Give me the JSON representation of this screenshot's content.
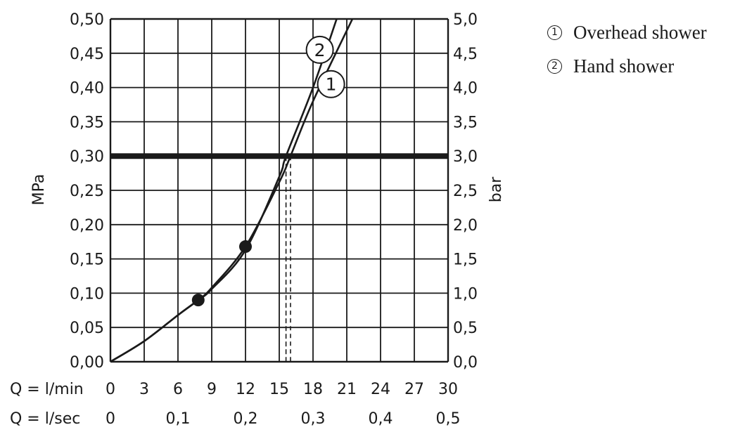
{
  "chart_data": {
    "type": "line",
    "xlabel": "Q = l/min",
    "x2label": "Q = l/sec",
    "ylabel": "MPa",
    "y2label": "bar",
    "xlim": [
      0,
      30
    ],
    "ylim": [
      0,
      0.5
    ],
    "grid": true,
    "x_ticks": [
      "0",
      "3",
      "6",
      "9",
      "12",
      "15",
      "18",
      "21",
      "24",
      "27",
      "30"
    ],
    "x2_ticks": [
      {
        "value": 0,
        "label": "0"
      },
      {
        "value": 0.1,
        "label": "0,1"
      },
      {
        "value": 0.2,
        "label": "0,2"
      },
      {
        "value": 0.3,
        "label": "0,3"
      },
      {
        "value": 0.4,
        "label": "0,4"
      },
      {
        "value": 0.5,
        "label": "0,5"
      }
    ],
    "y_ticks": [
      "0,00",
      "0,05",
      "0,10",
      "0,15",
      "0,20",
      "0,25",
      "0,30",
      "0,35",
      "0,40",
      "0,45",
      "0,50"
    ],
    "y2_ticks": [
      "0,0",
      "0,5",
      "1,0",
      "1,5",
      "2,0",
      "2,5",
      "3,0",
      "3,5",
      "4,0",
      "4,5",
      "5,0"
    ],
    "series": [
      {
        "name": "1",
        "x": [
          0,
          3,
          6,
          7.8,
          9,
          12,
          15,
          16,
          18,
          21.5
        ],
        "y": [
          0,
          0.03,
          0.068,
          0.09,
          0.108,
          0.168,
          0.262,
          0.3,
          0.38,
          0.5
        ]
      },
      {
        "name": "2",
        "x": [
          0,
          3,
          6,
          7.8,
          9,
          12,
          15,
          15.6,
          18,
          20.1
        ],
        "y": [
          0,
          0.03,
          0.068,
          0.09,
          0.106,
          0.163,
          0.27,
          0.3,
          0.4,
          0.5
        ]
      }
    ],
    "reference_line": {
      "y": 0.3
    },
    "drop_lines_x": [
      15.6,
      16
    ],
    "markers": [
      {
        "x": 7.8,
        "y": 0.09
      },
      {
        "x": 12,
        "y": 0.168
      }
    ],
    "series_labels": [
      {
        "text": "2",
        "x": 18.6,
        "y": 0.455
      },
      {
        "text": "1",
        "x": 19.6,
        "y": 0.405
      }
    ],
    "legend": [
      {
        "marker": "1",
        "label": "Overhead shower"
      },
      {
        "marker": "2",
        "label": "Hand shower"
      }
    ],
    "legend_position": "top-right outside"
  }
}
